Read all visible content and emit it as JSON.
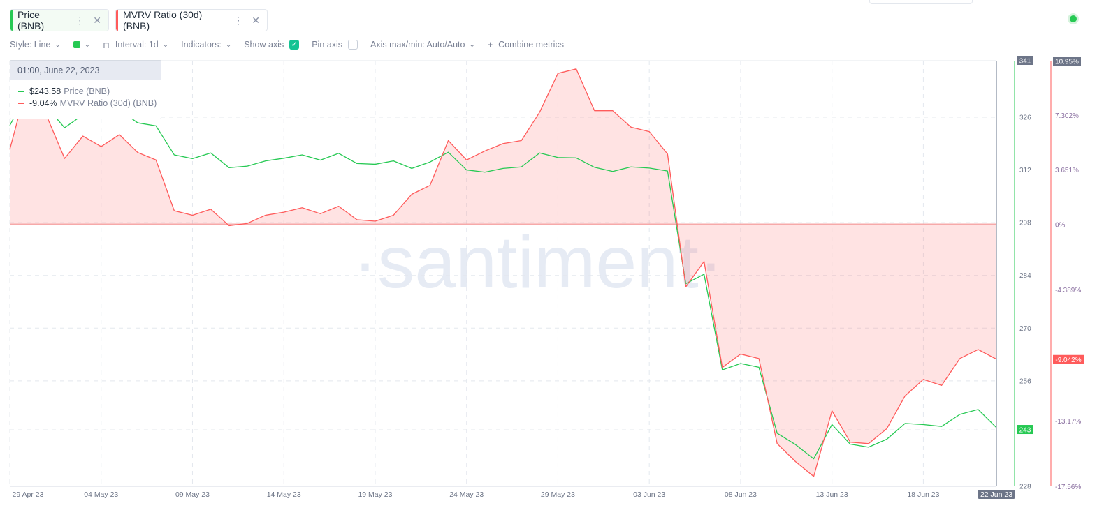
{
  "tabs": [
    {
      "label": "Price (BNB)",
      "color": "#26c953"
    },
    {
      "label": "MVRV Ratio (30d) (BNB)",
      "color": "#ff5b5b"
    }
  ],
  "toolbar": {
    "style": "Style: Line",
    "interval": "Interval: 1d",
    "indicators": "Indicators:",
    "show_axis": "Show axis",
    "pin_axis": "Pin axis",
    "axis_maxmin": "Axis max/min: Auto/Auto",
    "combine": "Combine metrics"
  },
  "tooltip": {
    "date": "01:00, June 22, 2023",
    "price_value": "$243.58",
    "price_name": "Price (BNB)",
    "mvrv_value": "-9.04%",
    "mvrv_name": "MVRV Ratio (30d) (BNB)"
  },
  "watermark": "·santiment·",
  "chart_data": {
    "type": "line",
    "x": [
      "29 Apr 23",
      "30 Apr 23",
      "01 May 23",
      "02 May 23",
      "03 May 23",
      "04 May 23",
      "05 May 23",
      "06 May 23",
      "07 May 23",
      "08 May 23",
      "09 May 23",
      "10 May 23",
      "11 May 23",
      "12 May 23",
      "13 May 23",
      "14 May 23",
      "15 May 23",
      "16 May 23",
      "17 May 23",
      "18 May 23",
      "19 May 23",
      "20 May 23",
      "21 May 23",
      "22 May 23",
      "23 May 23",
      "24 May 23",
      "25 May 23",
      "26 May 23",
      "27 May 23",
      "28 May 23",
      "29 May 23",
      "30 May 23",
      "31 May 23",
      "01 Jun 23",
      "02 Jun 23",
      "03 Jun 23",
      "04 Jun 23",
      "05 Jun 23",
      "06 Jun 23",
      "07 Jun 23",
      "08 Jun 23",
      "09 Jun 23",
      "10 Jun 23",
      "11 Jun 23",
      "12 Jun 23",
      "13 Jun 23",
      "14 Jun 23",
      "15 Jun 23",
      "16 Jun 23",
      "17 Jun 23",
      "18 Jun 23",
      "19 Jun 23",
      "20 Jun 23",
      "21 Jun 23",
      "22 Jun 23"
    ],
    "x_ticks": [
      "29 Apr 23",
      "04 May 23",
      "09 May 23",
      "14 May 23",
      "19 May 23",
      "24 May 23",
      "29 May 23",
      "03 Jun 23",
      "08 Jun 23",
      "13 Jun 23",
      "18 Jun 23"
    ],
    "x_tick_indices": [
      0,
      5,
      10,
      15,
      20,
      25,
      30,
      35,
      40,
      45,
      50
    ],
    "x_last_label": "22 Jun 23",
    "series": [
      {
        "name": "Price (BNB)",
        "color": "#26c953",
        "axis": "left",
        "values": [
          323.8,
          332.7,
          328.8,
          323.2,
          326.6,
          325.6,
          327.9,
          324.5,
          323.7,
          316.0,
          315.0,
          316.5,
          312.6,
          313.0,
          314.4,
          315.1,
          316.0,
          314.6,
          316.4,
          313.7,
          313.5,
          314.4,
          312.4,
          314.1,
          316.7,
          312.0,
          311.4,
          312.4,
          312.8,
          316.5,
          315.3,
          315.2,
          312.7,
          311.6,
          312.8,
          312.5,
          311.7,
          281.8,
          284.3,
          258.9,
          260.6,
          259.6,
          242.1,
          239.1,
          235.3,
          244.4,
          239.2,
          238.4,
          240.5,
          244.7,
          244.4,
          243.9,
          247.1,
          248.4,
          243.6
        ]
      },
      {
        "name": "MVRV Ratio (30d) (BNB)",
        "color": "#ff5b5b",
        "axis": "right",
        "values": [
          5.0,
          9.6,
          7.3,
          4.4,
          5.9,
          5.2,
          6.0,
          4.8,
          4.3,
          0.9,
          0.6,
          1.0,
          -0.1,
          0.05,
          0.6,
          0.8,
          1.1,
          0.7,
          1.2,
          0.3,
          0.2,
          0.6,
          2.0,
          2.6,
          5.6,
          4.3,
          4.9,
          5.4,
          5.6,
          7.5,
          10.1,
          10.4,
          7.6,
          7.6,
          6.5,
          6.2,
          4.7,
          -4.2,
          -2.5,
          -9.6,
          -8.7,
          -9.0,
          -14.7,
          -15.9,
          -16.9,
          -12.5,
          -14.6,
          -14.7,
          -13.7,
          -11.5,
          -10.4,
          -10.8,
          -9.0,
          -8.4,
          -9.042
        ]
      }
    ],
    "y_left": {
      "ticks": [
        228,
        243,
        256,
        270,
        284,
        298,
        312,
        326,
        341
      ],
      "range": [
        228,
        341
      ],
      "tick_labels": [
        "228",
        "243",
        "256",
        "270",
        "284",
        "298",
        "312",
        "326",
        "341"
      ],
      "current": "243"
    },
    "y_right": {
      "ticks": [
        -17.56,
        -13.17,
        -9.042,
        -4.389,
        0,
        3.651,
        7.302,
        10.95
      ],
      "range": [
        -17.56,
        10.95
      ],
      "tick_labels": [
        "-17.56%",
        "-13.17%",
        "-9.042%",
        "-4.389%",
        "0%",
        "3.651%",
        "7.302%",
        "10.95%"
      ],
      "current": "-9.042%"
    },
    "grid": true,
    "legend": "top-left"
  }
}
